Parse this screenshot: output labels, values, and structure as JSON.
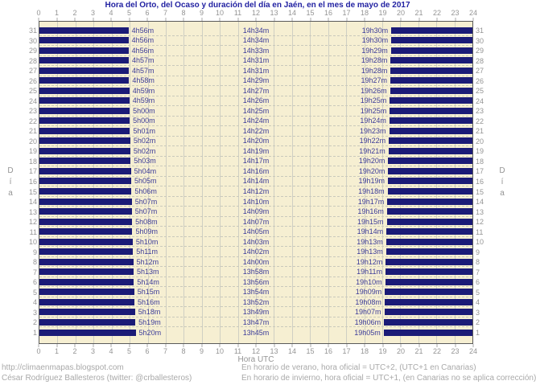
{
  "title": "Hora del Orto, del Ocaso y duración del día en Jaén, en el mes de mayo de 2017",
  "axis": {
    "hours": [
      "0",
      "1",
      "2",
      "3",
      "4",
      "5",
      "6",
      "7",
      "8",
      "9",
      "10",
      "11",
      "12",
      "13",
      "14",
      "15",
      "16",
      "17",
      "18",
      "19",
      "20",
      "21",
      "22",
      "23",
      "24"
    ],
    "xlabel": "Hora UTC",
    "ylabel": "Día"
  },
  "footer": {
    "left_line1": "http://climaenmapas.blogspot.com",
    "left_line2": "César Rodríguez Ballesteros (twitter: @crballesteros)",
    "right_line1": "En horario de verano, hora oficial = UTC+2, (UTC+1 en Canarias)",
    "right_line2": "En horario de invierno, hora oficial = UTC+1, (en Canarias no se aplica corrección)"
  },
  "colors": {
    "bar": "#1b1b77",
    "plot_background": "#f6efd2",
    "title_text": "#2222a2",
    "value_text": "#3b3b99",
    "axis_text": "#949494",
    "footer_text": "#a9a9a9"
  },
  "chart_data": {
    "type": "bar",
    "title": "Hora del Orto, del Ocaso y duración del día en Jaén, en el mes de mayo de 2017",
    "xlabel": "Hora UTC",
    "ylabel": "Día",
    "xlim": [
      0,
      24
    ],
    "x_tick_step": 1,
    "legend": "none",
    "description": "Horizontal navy bars mark night hours (from 0h UTC to sunrise, and from sunset to 24h UTC) for each day of May 2017 in Jaén; the cream gap is daylight. Labels per row: sunrise time (orto), day length (duración), sunset time (ocaso).",
    "days": [
      {
        "day": 31,
        "orto": "4h56m",
        "duracion": "14h34m",
        "ocaso": "19h30m"
      },
      {
        "day": 30,
        "orto": "4h56m",
        "duracion": "14h34m",
        "ocaso": "19h30m"
      },
      {
        "day": 29,
        "orto": "4h56m",
        "duracion": "14h33m",
        "ocaso": "19h29m"
      },
      {
        "day": 28,
        "orto": "4h57m",
        "duracion": "14h31m",
        "ocaso": "19h28m"
      },
      {
        "day": 27,
        "orto": "4h57m",
        "duracion": "14h31m",
        "ocaso": "19h28m"
      },
      {
        "day": 26,
        "orto": "4h58m",
        "duracion": "14h29m",
        "ocaso": "19h27m"
      },
      {
        "day": 25,
        "orto": "4h59m",
        "duracion": "14h27m",
        "ocaso": "19h26m"
      },
      {
        "day": 24,
        "orto": "4h59m",
        "duracion": "14h26m",
        "ocaso": "19h25m"
      },
      {
        "day": 23,
        "orto": "5h00m",
        "duracion": "14h25m",
        "ocaso": "19h25m"
      },
      {
        "day": 22,
        "orto": "5h00m",
        "duracion": "14h24m",
        "ocaso": "19h24m"
      },
      {
        "day": 21,
        "orto": "5h01m",
        "duracion": "14h22m",
        "ocaso": "19h23m"
      },
      {
        "day": 20,
        "orto": "5h02m",
        "duracion": "14h20m",
        "ocaso": "19h22m"
      },
      {
        "day": 19,
        "orto": "5h02m",
        "duracion": "14h19m",
        "ocaso": "19h21m"
      },
      {
        "day": 18,
        "orto": "5h03m",
        "duracion": "14h17m",
        "ocaso": "19h20m"
      },
      {
        "day": 17,
        "orto": "5h04m",
        "duracion": "14h16m",
        "ocaso": "19h20m"
      },
      {
        "day": 16,
        "orto": "5h05m",
        "duracion": "14h14m",
        "ocaso": "19h19m"
      },
      {
        "day": 15,
        "orto": "5h06m",
        "duracion": "14h12m",
        "ocaso": "19h18m"
      },
      {
        "day": 14,
        "orto": "5h07m",
        "duracion": "14h10m",
        "ocaso": "19h17m"
      },
      {
        "day": 13,
        "orto": "5h07m",
        "duracion": "14h09m",
        "ocaso": "19h16m"
      },
      {
        "day": 12,
        "orto": "5h08m",
        "duracion": "14h07m",
        "ocaso": "19h15m"
      },
      {
        "day": 11,
        "orto": "5h09m",
        "duracion": "14h05m",
        "ocaso": "19h14m"
      },
      {
        "day": 10,
        "orto": "5h10m",
        "duracion": "14h03m",
        "ocaso": "19h13m"
      },
      {
        "day": 9,
        "orto": "5h11m",
        "duracion": "14h02m",
        "ocaso": "19h13m"
      },
      {
        "day": 8,
        "orto": "5h12m",
        "duracion": "14h00m",
        "ocaso": "19h12m"
      },
      {
        "day": 7,
        "orto": "5h13m",
        "duracion": "13h58m",
        "ocaso": "19h11m"
      },
      {
        "day": 6,
        "orto": "5h14m",
        "duracion": "13h56m",
        "ocaso": "19h10m"
      },
      {
        "day": 5,
        "orto": "5h15m",
        "duracion": "13h54m",
        "ocaso": "19h09m"
      },
      {
        "day": 4,
        "orto": "5h16m",
        "duracion": "13h52m",
        "ocaso": "19h08m"
      },
      {
        "day": 3,
        "orto": "5h18m",
        "duracion": "13h49m",
        "ocaso": "19h07m"
      },
      {
        "day": 2,
        "orto": "5h19m",
        "duracion": "13h47m",
        "ocaso": "19h06m"
      },
      {
        "day": 1,
        "orto": "5h20m",
        "duracion": "13h45m",
        "ocaso": "19h05m"
      }
    ]
  }
}
